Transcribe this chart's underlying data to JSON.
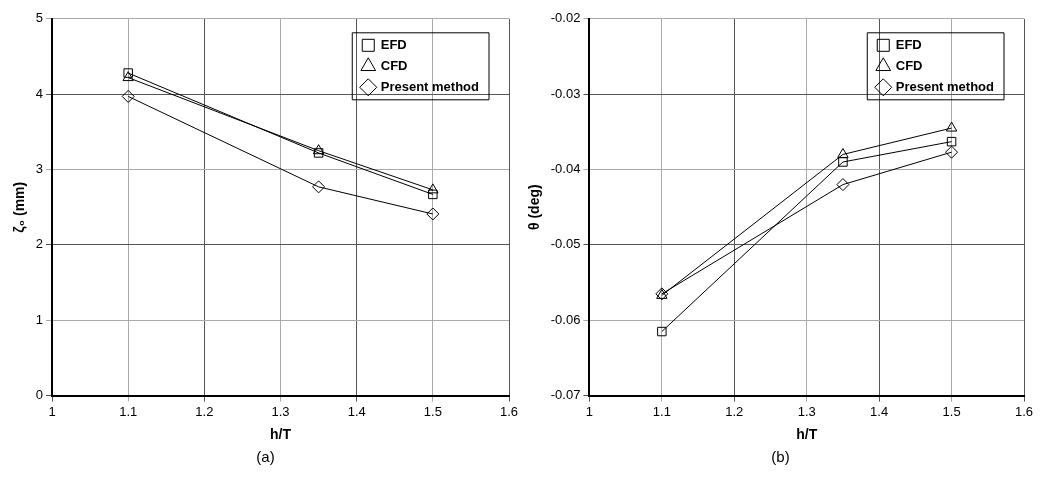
{
  "chart_data": [
    {
      "type": "line",
      "xlabel": "h/T",
      "ylabel": "ζ₀ (mm)",
      "annotations": [
        "(a)"
      ],
      "x": [
        1.1,
        1.35,
        1.5
      ],
      "xlim": [
        1,
        1.6
      ],
      "xticks": [
        1,
        1.1,
        1.2,
        1.3,
        1.4,
        1.5,
        1.6
      ],
      "ylim": [
        0,
        5
      ],
      "yticks": [
        0,
        1,
        2,
        3,
        4,
        5
      ],
      "grid": true,
      "legend": "top right",
      "series": [
        {
          "name": "EFD",
          "color": "#000000",
          "marker": "square",
          "values": [
            4.28,
            3.22,
            2.67
          ]
        },
        {
          "name": "CFD",
          "color": "#000000",
          "marker": "triangle",
          "values": [
            4.22,
            3.25,
            2.73
          ]
        },
        {
          "name": "Present method",
          "color": "#000000",
          "marker": "diamond",
          "values": [
            3.97,
            2.77,
            2.41
          ]
        }
      ]
    },
    {
      "type": "line",
      "xlabel": "h/T",
      "ylabel": "θ (deg)",
      "annotations": [
        "(b)"
      ],
      "x": [
        1.1,
        1.35,
        1.5
      ],
      "xlim": [
        1,
        1.6
      ],
      "xticks": [
        1,
        1.1,
        1.2,
        1.3,
        1.4,
        1.5,
        1.6
      ],
      "ylim": [
        -0.07,
        -0.02
      ],
      "yticks": [
        -0.07,
        -0.06,
        -0.05,
        -0.04,
        -0.03,
        -0.02
      ],
      "grid": true,
      "legend": "top right",
      "series": [
        {
          "name": "EFD",
          "color": "#000000",
          "marker": "square",
          "values": [
            -0.0615,
            -0.039,
            -0.0363
          ]
        },
        {
          "name": "CFD",
          "color": "#000000",
          "marker": "triangle",
          "values": [
            -0.0567,
            -0.038,
            -0.0345
          ]
        },
        {
          "name": "Present method",
          "color": "#000000",
          "marker": "diamond",
          "values": [
            -0.0565,
            -0.042,
            -0.0377
          ]
        }
      ]
    }
  ]
}
